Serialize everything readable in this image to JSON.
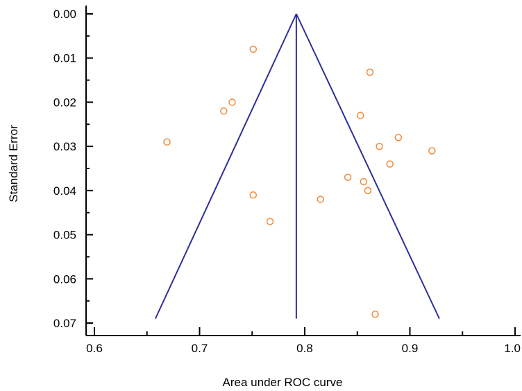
{
  "chart_data": {
    "type": "scatter",
    "title": "",
    "xlabel": "Area under ROC curve",
    "ylabel": "Standard Error",
    "xlim": [
      0.6,
      1.0
    ],
    "ylim": [
      0.0,
      0.07
    ],
    "y_inverted": true,
    "grid": false,
    "x_ticks": [
      "0.6",
      "0.7",
      "0.8",
      "0.9",
      "1.0"
    ],
    "y_ticks": [
      "0.00",
      "0.01",
      "0.02",
      "0.03",
      "0.04",
      "0.05",
      "0.06",
      "0.07"
    ],
    "points": [
      {
        "x": 0.751,
        "y": 0.008
      },
      {
        "x": 0.862,
        "y": 0.0132
      },
      {
        "x": 0.731,
        "y": 0.02
      },
      {
        "x": 0.723,
        "y": 0.022
      },
      {
        "x": 0.853,
        "y": 0.023
      },
      {
        "x": 0.889,
        "y": 0.028
      },
      {
        "x": 0.669,
        "y": 0.029
      },
      {
        "x": 0.871,
        "y": 0.03
      },
      {
        "x": 0.921,
        "y": 0.031
      },
      {
        "x": 0.881,
        "y": 0.034
      },
      {
        "x": 0.841,
        "y": 0.037
      },
      {
        "x": 0.856,
        "y": 0.038
      },
      {
        "x": 0.86,
        "y": 0.04
      },
      {
        "x": 0.751,
        "y": 0.041
      },
      {
        "x": 0.815,
        "y": 0.042
      },
      {
        "x": 0.767,
        "y": 0.047
      },
      {
        "x": 0.867,
        "y": 0.068
      }
    ],
    "funnel": {
      "summary": 0.792,
      "apex_se": 0.0,
      "base_se": 0.069,
      "left_at_base": 0.658,
      "right_at_base": 0.928
    },
    "colors": {
      "points": "#f08a3a",
      "funnel": "#2e2e9a",
      "axes": "#000000"
    }
  }
}
